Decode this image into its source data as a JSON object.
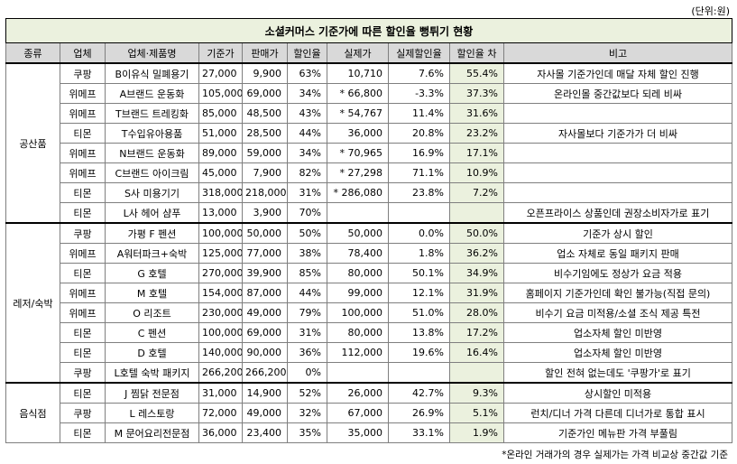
{
  "unit": "(단위:원)",
  "title": "소셜커머스 기준가에 따른 할인율 뻥튀기 현황",
  "headers": [
    "종류",
    "업체",
    "업체·제품명",
    "기준가",
    "판매가",
    "할인율",
    "실제가",
    "실제할인율",
    "할인율 차",
    "비고"
  ],
  "categories": [
    "공산품",
    "레저/숙박",
    "음식점"
  ],
  "rows": [
    {
      "company": "쿠팡",
      "product": "B이유식 밀폐용기",
      "base": "27,000",
      "sale": "9,900",
      "rate": "63%",
      "real": "10,710",
      "real_rate": "7.6%",
      "diff": "55.4%",
      "note": "자사몰 기준가인데 매달 자체 할인 진행"
    },
    {
      "company": "위메프",
      "product": "A브랜드 운동화",
      "base": "105,000",
      "sale": "69,000",
      "rate": "34%",
      "real": "* 66,800",
      "real_rate": "-3.3%",
      "diff": "37.3%",
      "note": "온라인몰 중간값보다 되레 비싸"
    },
    {
      "company": "위메프",
      "product": "T브랜드 트레킹화",
      "base": "85,000",
      "sale": "48,500",
      "rate": "43%",
      "real": "* 54,767",
      "real_rate": "11.4%",
      "diff": "31.6%",
      "note": ""
    },
    {
      "company": "티몬",
      "product": "T수입유아용품",
      "base": "51,000",
      "sale": "28,500",
      "rate": "44%",
      "real": "36,000",
      "real_rate": "20.8%",
      "diff": "23.2%",
      "note": "자사몰보다 기준가가 더 비싸"
    },
    {
      "company": "위메프",
      "product": "N브랜드 운동화",
      "base": "89,000",
      "sale": "59,000",
      "rate": "34%",
      "real": "* 70,965",
      "real_rate": "16.9%",
      "diff": "17.1%",
      "note": ""
    },
    {
      "company": "위메프",
      "product": "C브랜드 아이크림",
      "base": "45,000",
      "sale": "7,900",
      "rate": "82%",
      "real": "* 27,298",
      "real_rate": "71.1%",
      "diff": "10.9%",
      "note": ""
    },
    {
      "company": "티몬",
      "product": "S사 미용기기",
      "base": "318,000",
      "sale": "218,000",
      "rate": "31%",
      "real": "* 286,080",
      "real_rate": "23.8%",
      "diff": "7.2%",
      "note": ""
    },
    {
      "company": "티몬",
      "product": "L사 헤어 샴푸",
      "base": "13,000",
      "sale": "3,900",
      "rate": "70%",
      "real": "",
      "real_rate": "",
      "diff": "",
      "note": "오픈프라이스 상품인데 권장소비자가로 표기"
    },
    {
      "company": "쿠팡",
      "product": "가평 F 펜션",
      "base": "100,000",
      "sale": "50,000",
      "rate": "50%",
      "real": "50,000",
      "real_rate": "0.0%",
      "diff": "50.0%",
      "note": "기준가 상시 할인"
    },
    {
      "company": "위메프",
      "product": "A워터파크+숙박",
      "base": "125,000",
      "sale": "77,000",
      "rate": "38%",
      "real": "78,400",
      "real_rate": "1.8%",
      "diff": "36.2%",
      "note": "업소 자체로 동일 패키지 판매"
    },
    {
      "company": "티몬",
      "product": "G 호텔",
      "base": "270,000",
      "sale": "39,900",
      "rate": "85%",
      "real": "80,000",
      "real_rate": "50.1%",
      "diff": "34.9%",
      "note": "비수기임에도 정상가 요금 적용"
    },
    {
      "company": "위메프",
      "product": "M 호텔",
      "base": "154,000",
      "sale": "87,000",
      "rate": "44%",
      "real": "99,000",
      "real_rate": "12.1%",
      "diff": "31.9%",
      "note": "홈페이지 기준가인데 확인 불가능(직접 문의)"
    },
    {
      "company": "위메프",
      "product": "O 리조트",
      "base": "230,000",
      "sale": "49,000",
      "rate": "79%",
      "real": "100,000",
      "real_rate": "51.0%",
      "diff": "28.0%",
      "note": "비수기 요금 미적용/소셜 조식 제공 특전"
    },
    {
      "company": "티몬",
      "product": "C 펜션",
      "base": "100,000",
      "sale": "69,000",
      "rate": "31%",
      "real": "80,000",
      "real_rate": "13.8%",
      "diff": "17.2%",
      "note": "업소자체 할인 미반영"
    },
    {
      "company": "티몬",
      "product": "D 호텔",
      "base": "140,000",
      "sale": "90,000",
      "rate": "36%",
      "real": "112,000",
      "real_rate": "19.6%",
      "diff": "16.4%",
      "note": "업소자체 할인 미반영"
    },
    {
      "company": "쿠팡",
      "product": "L호텔 숙박 패키지",
      "base": "266,200",
      "sale": "266,200",
      "rate": "0%",
      "real": "",
      "real_rate": "",
      "diff": "",
      "note": "할인 전혀 없는데도 '쿠팡가'로 표기"
    },
    {
      "company": "티몬",
      "product": "J 찜닭 전문점",
      "base": "31,000",
      "sale": "14,900",
      "rate": "52%",
      "real": "26,000",
      "real_rate": "42.7%",
      "diff": "9.3%",
      "note": "상시할인 미적용"
    },
    {
      "company": "쿠팡",
      "product": "L 레스토랑",
      "base": "72,000",
      "sale": "49,000",
      "rate": "32%",
      "real": "67,000",
      "real_rate": "26.9%",
      "diff": "5.1%",
      "note": "런치/디너 가격 다른데 디너가로 통합 표시"
    },
    {
      "company": "티몬",
      "product": "M 문어요리전문점",
      "base": "36,000",
      "sale": "23,400",
      "rate": "35%",
      "real": "35,000",
      "real_rate": "33.1%",
      "diff": "1.9%",
      "note": "기준가인 메뉴판 가격 부풀림"
    }
  ],
  "footnote": "*온라인 거래가의 경우 실제가는 가격 비교상 중간값 기준"
}
